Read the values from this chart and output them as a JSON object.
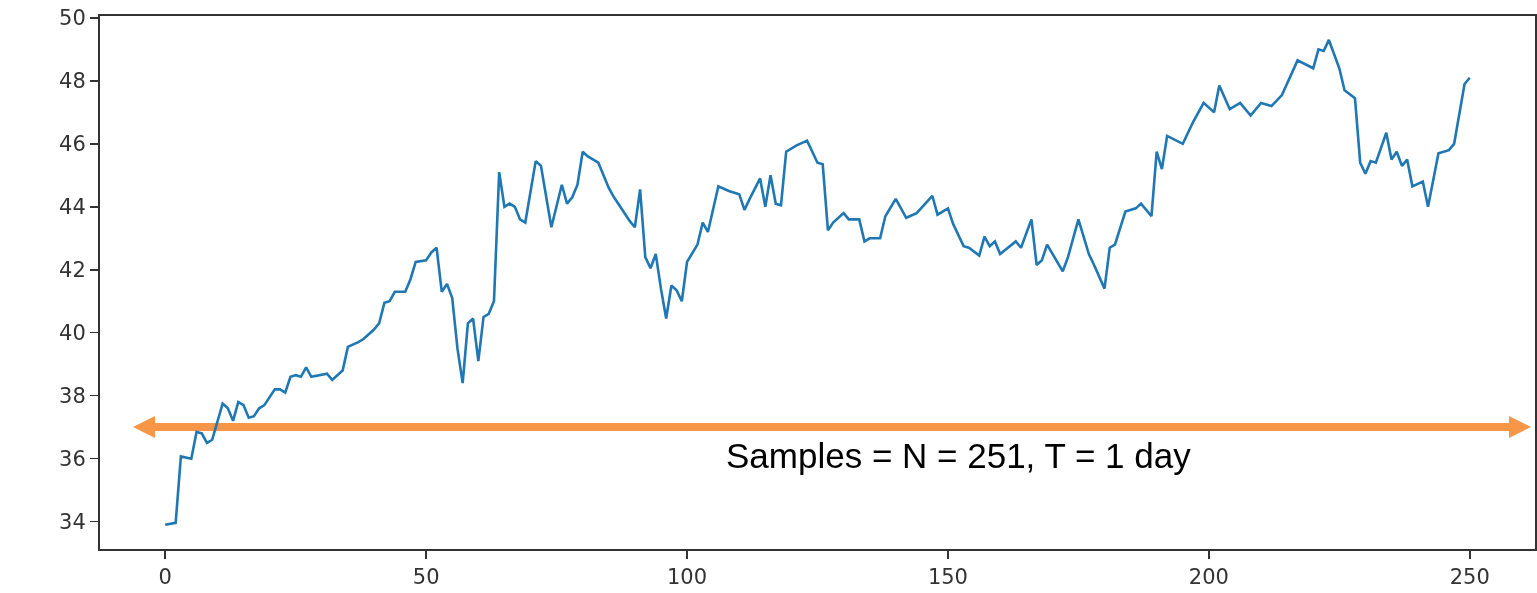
{
  "chart_data": {
    "type": "line",
    "xlim": [
      -12.5,
      262.5
    ],
    "ylim": [
      33.13,
      50.06
    ],
    "xticks": [
      0,
      50,
      100,
      150,
      200,
      250
    ],
    "yticks": [
      34,
      36,
      38,
      40,
      42,
      44,
      46,
      48,
      50
    ],
    "grid": false,
    "annotations": [
      "Samples = N = 251, T = 1 day"
    ],
    "series": [
      {
        "color": "#1f77b4",
        "x": [
          0,
          2,
          3,
          5,
          6,
          7,
          8,
          9,
          11,
          12,
          13,
          14,
          15,
          16,
          17,
          18,
          19,
          21,
          22,
          23,
          24,
          25,
          26,
          27,
          28,
          31,
          32,
          34,
          35,
          37,
          38,
          40,
          41,
          42,
          43,
          44,
          46,
          47,
          48,
          50,
          51,
          52,
          53,
          54,
          55,
          56,
          57,
          58,
          59,
          60,
          61,
          62,
          63,
          64,
          65,
          66,
          67,
          68,
          69,
          71,
          72,
          74,
          76,
          77,
          78,
          79,
          80,
          81,
          83,
          85,
          86,
          88,
          89,
          90,
          91,
          92,
          93,
          94,
          95,
          96,
          97,
          98,
          99,
          100,
          102,
          103,
          104,
          106,
          108,
          110,
          111,
          112,
          114,
          115,
          116,
          117,
          118,
          119,
          121,
          123,
          125,
          126,
          127,
          128,
          130,
          131,
          133,
          134,
          135,
          137,
          138,
          140,
          142,
          144,
          147,
          148,
          150,
          151,
          153,
          154,
          156,
          157,
          158,
          159,
          160,
          163,
          164,
          166,
          167,
          168,
          169,
          172,
          173,
          175,
          177,
          178,
          180,
          181,
          182,
          184,
          186,
          187,
          189,
          190,
          191,
          192,
          195,
          197,
          199,
          201,
          202,
          204,
          206,
          208,
          210,
          212,
          214,
          217,
          220,
          221,
          222,
          223,
          225,
          226,
          228,
          229,
          230,
          231,
          232,
          234,
          235,
          236,
          237,
          238,
          239,
          241,
          242,
          244,
          246,
          247,
          249,
          250
        ],
        "values": [
          33.9,
          33.96,
          36.07,
          36.0,
          36.85,
          36.8,
          36.5,
          36.6,
          37.75,
          37.6,
          37.2,
          37.8,
          37.7,
          37.3,
          37.35,
          37.6,
          37.7,
          38.2,
          38.2,
          38.1,
          38.6,
          38.65,
          38.6,
          38.9,
          38.6,
          38.7,
          38.5,
          38.8,
          39.55,
          39.7,
          39.8,
          40.1,
          40.3,
          40.95,
          41.0,
          41.3,
          41.3,
          41.7,
          42.25,
          42.3,
          42.55,
          42.7,
          41.3,
          41.55,
          41.1,
          39.5,
          38.4,
          40.3,
          40.45,
          39.1,
          40.5,
          40.6,
          41.0,
          45.1,
          44.0,
          44.1,
          44.0,
          43.6,
          43.5,
          45.45,
          45.3,
          43.35,
          44.7,
          44.1,
          44.3,
          44.7,
          45.75,
          45.6,
          45.4,
          44.6,
          44.3,
          43.8,
          43.55,
          43.35,
          44.55,
          42.4,
          42.05,
          42.5,
          41.4,
          40.45,
          41.5,
          41.35,
          41.0,
          42.25,
          42.8,
          43.5,
          43.2,
          44.65,
          44.5,
          44.4,
          43.9,
          44.25,
          44.9,
          44.0,
          45.0,
          44.1,
          44.05,
          45.75,
          45.95,
          46.1,
          45.4,
          45.35,
          43.25,
          43.5,
          43.8,
          43.6,
          43.6,
          42.9,
          43.0,
          43.0,
          43.7,
          44.25,
          43.65,
          43.8,
          44.35,
          43.75,
          43.95,
          43.45,
          42.75,
          42.7,
          42.45,
          43.05,
          42.75,
          42.9,
          42.5,
          42.9,
          42.7,
          43.6,
          42.15,
          42.3,
          42.8,
          41.95,
          42.4,
          43.6,
          42.5,
          42.15,
          41.4,
          42.7,
          42.8,
          43.85,
          43.95,
          44.1,
          43.7,
          45.75,
          45.2,
          46.25,
          46.0,
          46.7,
          47.3,
          47.0,
          47.85,
          47.1,
          47.3,
          46.9,
          47.3,
          47.2,
          47.55,
          48.65,
          48.4,
          49.0,
          48.95,
          49.3,
          48.4,
          47.7,
          47.45,
          45.4,
          45.05,
          45.45,
          45.4,
          46.35,
          45.5,
          45.75,
          45.3,
          45.5,
          44.65,
          44.8,
          44.0,
          45.7,
          45.8,
          46.0,
          47.9,
          48.1
        ]
      }
    ]
  }
}
